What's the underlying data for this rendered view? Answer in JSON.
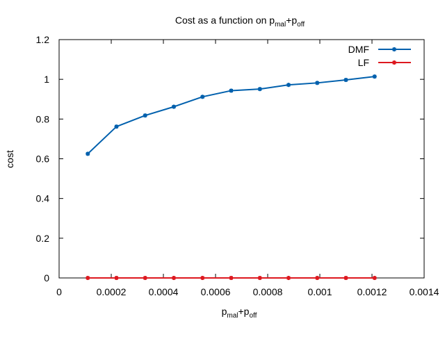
{
  "chart_data": {
    "type": "line",
    "title": {
      "main": "Cost as a function on p",
      "sub1": "mal",
      "mid": "+p",
      "sub2": "off"
    },
    "xlabel": {
      "main": "p",
      "sub1": "mal",
      "mid": "+p",
      "sub2": "off"
    },
    "ylabel": "cost",
    "xlim": [
      0,
      0.0014
    ],
    "ylim": [
      0,
      1.2
    ],
    "x_ticks": [
      {
        "value": 0,
        "label": "0"
      },
      {
        "value": 0.0002,
        "label": "0.0002"
      },
      {
        "value": 0.0004,
        "label": "0.0004"
      },
      {
        "value": 0.0006,
        "label": "0.0006"
      },
      {
        "value": 0.0008,
        "label": "0.0008"
      },
      {
        "value": 0.001,
        "label": "0.001"
      },
      {
        "value": 0.0012,
        "label": "0.0012"
      },
      {
        "value": 0.0014,
        "label": "0.0014"
      }
    ],
    "y_ticks": [
      {
        "value": 0,
        "label": "0"
      },
      {
        "value": 0.2,
        "label": "0.2"
      },
      {
        "value": 0.4,
        "label": "0.4"
      },
      {
        "value": 0.6,
        "label": "0.6"
      },
      {
        "value": 0.8,
        "label": "0.8"
      },
      {
        "value": 1.0,
        "label": "1"
      },
      {
        "value": 1.2,
        "label": "1.2"
      }
    ],
    "grid": false,
    "legend_position": "top-right",
    "x": [
      0.00011,
      0.00022,
      0.00033,
      0.00044,
      0.00055,
      0.00066,
      0.00077,
      0.00088,
      0.00099,
      0.0011,
      0.00121
    ],
    "series": [
      {
        "name": "DMF",
        "color": "#0060ad",
        "values": [
          0.625,
          0.762,
          0.818,
          0.862,
          0.912,
          0.943,
          0.951,
          0.972,
          0.982,
          0.997,
          1.014
        ]
      },
      {
        "name": "LF",
        "color": "#dd181f",
        "values": [
          0,
          0,
          0,
          0,
          0,
          0,
          0,
          0,
          0,
          0,
          0
        ]
      }
    ]
  }
}
